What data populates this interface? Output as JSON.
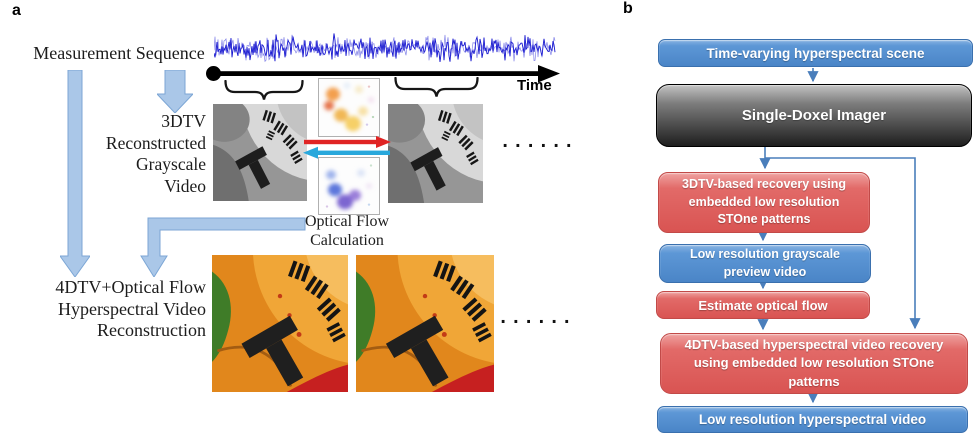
{
  "figure": {
    "panel_a": {
      "label": "a",
      "measurement_sequence_label": "Measurement Sequence",
      "time_axis_label": "Time",
      "reconstructed_video_label_lines": [
        "3DTV",
        "Reconstructed",
        "Grayscale",
        "Video"
      ],
      "optical_flow_label_lines": [
        "Optical Flow",
        "Calculation"
      ],
      "hyperspectral_reconstruction_label_lines": [
        "4DTV+Optical Flow",
        "Hyperspectral Video",
        "Reconstruction"
      ],
      "ellipsis_top": "......",
      "ellipsis_bottom": "......"
    },
    "panel_b": {
      "label": "b",
      "boxes": [
        {
          "id": "scene",
          "type": "blue",
          "label": "Time-varying hyperspectral scene"
        },
        {
          "id": "imager",
          "type": "gray",
          "label": "Single-Doxel Imager"
        },
        {
          "id": "recovery_3dtv",
          "type": "red",
          "label": "3DTV-based recovery using\nembedded low resolution\nSTOne patterns"
        },
        {
          "id": "preview_video",
          "type": "blue",
          "label": "Low resolution grayscale\npreview video"
        },
        {
          "id": "estimate_flow",
          "type": "red",
          "label": "Estimate optical flow"
        },
        {
          "id": "recovery_4dtv",
          "type": "red",
          "label": "4DTV-based hyperspectral video recovery\nusing embedded low resolution STOne\npatterns"
        },
        {
          "id": "output_video",
          "type": "blue",
          "label": "Low resolution hyperspectral video"
        }
      ]
    },
    "colors": {
      "box_blue": "#4e87c9",
      "box_red": "#dd5a5a",
      "box_gray_dark": "#1c1c1c",
      "connector": "#4a7ebb",
      "panel_a_arrow_fill": "#aac7e8",
      "panel_a_arrow_stroke": "#7ca6d5",
      "flow_arrow_red": "#e02424",
      "flow_arrow_cyan": "#29a8dc",
      "signal_blue": "#1717cf"
    }
  }
}
